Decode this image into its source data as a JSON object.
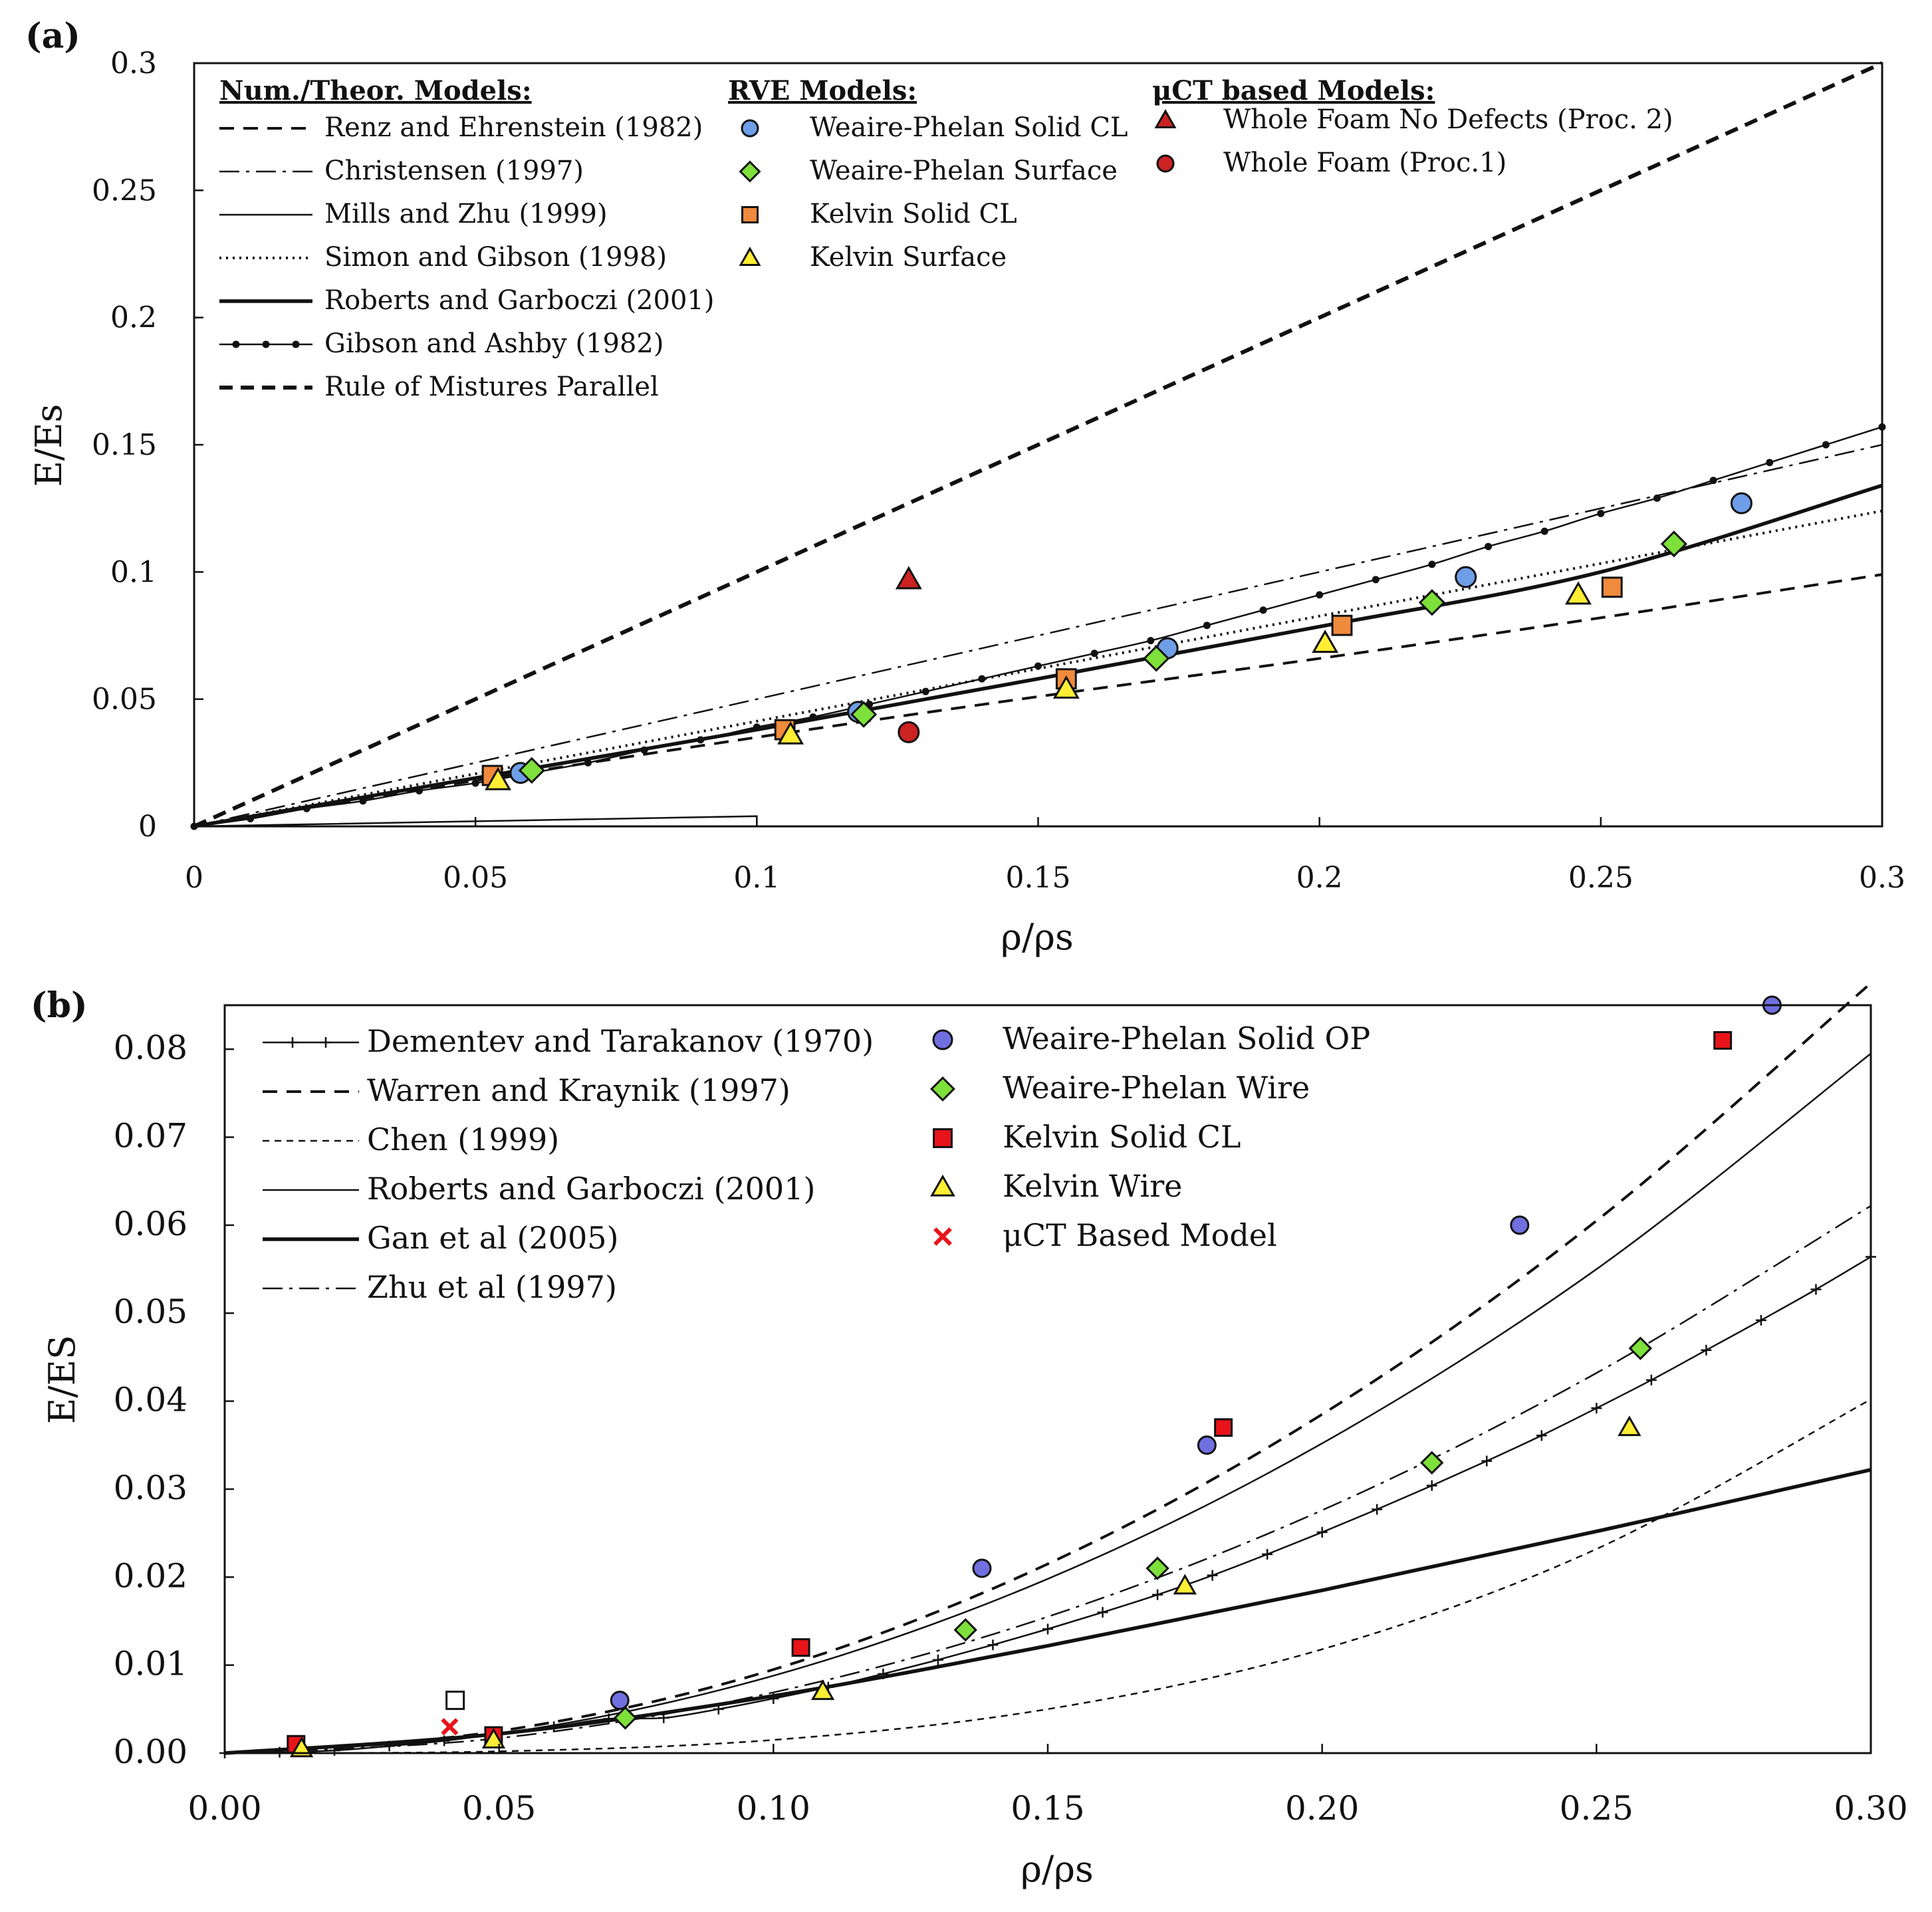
{
  "chart_data": [
    {
      "panel": "(a)",
      "type": "line",
      "xlabel": "ρ/ρs",
      "ylabel": "E/Es",
      "xlim": [
        0,
        0.3
      ],
      "ylim": [
        0,
        0.3
      ],
      "xticks": [
        "0",
        "0.05",
        "0.1",
        "0.15",
        "0.2",
        "0.25",
        "0.3"
      ],
      "yticks": [
        "0",
        "0.05",
        "0.1",
        "0.15",
        "0.2",
        "0.25",
        "0.3"
      ],
      "grid": false,
      "legend_heads": [
        "Num./Theor. Models:",
        "RVE Models:",
        "μCT based Models:"
      ],
      "lines": [
        {
          "name": "Renz and Ehrenstein (1982)",
          "style": "dashed",
          "x": [
            0,
            0.05,
            0.1,
            0.15,
            0.2,
            0.25,
            0.3
          ],
          "y": [
            0,
            0.018,
            0.035,
            0.051,
            0.066,
            0.082,
            0.099
          ]
        },
        {
          "name": "Christensen (1997)",
          "style": "dashdot",
          "x": [
            0,
            0.3
          ],
          "y": [
            0,
            0.15
          ]
        },
        {
          "name": "Mills and Zhu (1999)",
          "style": "thin",
          "x": [
            0,
            0.1,
            0.1
          ],
          "y": [
            0,
            0.004,
            0
          ]
        },
        {
          "name": "Simon and Gibson (1998)",
          "style": "dotted",
          "x": [
            0,
            0.3
          ],
          "y": [
            0,
            0.124
          ]
        },
        {
          "name": "Roberts and Garboczi (2001)",
          "style": "thick",
          "x": [
            0,
            0.05,
            0.1,
            0.15,
            0.2,
            0.25,
            0.3
          ],
          "y": [
            0,
            0.019,
            0.038,
            0.058,
            0.0785,
            0.1,
            0.134
          ]
        },
        {
          "name": "Gibson and Ashby (1982)",
          "style": "markers",
          "x": [
            0,
            0.01,
            0.02,
            0.03,
            0.04,
            0.05,
            0.06,
            0.07,
            0.08,
            0.09,
            0.1,
            0.11,
            0.12,
            0.13,
            0.14,
            0.15,
            0.16,
            0.17,
            0.18,
            0.19,
            0.2,
            0.21,
            0.22,
            0.23,
            0.24,
            0.25,
            0.26,
            0.27,
            0.28,
            0.29,
            0.3
          ],
          "y": [
            0,
            0.003,
            0.007,
            0.01,
            0.014,
            0.017,
            0.021,
            0.025,
            0.03,
            0.034,
            0.039,
            0.043,
            0.048,
            0.053,
            0.058,
            0.063,
            0.068,
            0.073,
            0.079,
            0.085,
            0.091,
            0.097,
            0.103,
            0.11,
            0.116,
            0.123,
            0.129,
            0.136,
            0.143,
            0.15,
            0.157
          ]
        },
        {
          "name": "Rule of Mistures Parallel",
          "style": "thickdashed",
          "x": [
            0,
            0.3
          ],
          "y": [
            0,
            0.3
          ]
        }
      ],
      "points": [
        {
          "name": "Weaire-Phelan Solid CL",
          "marker": "circle",
          "color": "#6f9ee8",
          "x": [
            0.058,
            0.118,
            0.173,
            0.226,
            0.275
          ],
          "y": [
            0.021,
            0.045,
            0.07,
            0.098,
            0.127
          ]
        },
        {
          "name": "Weaire-Phelan Surface",
          "marker": "diamond",
          "color": "#7ee03a",
          "x": [
            0.06,
            0.119,
            0.171,
            0.22,
            0.263
          ],
          "y": [
            0.022,
            0.044,
            0.066,
            0.088,
            0.111
          ]
        },
        {
          "name": "Kelvin Solid CL",
          "marker": "square",
          "color": "#f08a3c",
          "x": [
            0.053,
            0.105,
            0.155,
            0.204,
            0.252
          ],
          "y": [
            0.02,
            0.038,
            0.058,
            0.079,
            0.094
          ]
        },
        {
          "name": "Kelvin Surface",
          "marker": "triangle",
          "color": "#ffee33",
          "x": [
            0.054,
            0.106,
            0.155,
            0.201,
            0.246
          ],
          "y": [
            0.018,
            0.036,
            0.054,
            0.072,
            0.091
          ]
        },
        {
          "name": "Whole Foam No Defects (Proc. 2)",
          "marker": "triangle",
          "color": "#cc2222",
          "x": [
            0.127
          ],
          "y": [
            0.097
          ]
        },
        {
          "name": "Whole Foam (Proc.1)",
          "marker": "circle",
          "color": "#cc2222",
          "x": [
            0.127
          ],
          "y": [
            0.037
          ]
        }
      ]
    },
    {
      "panel": "(b)",
      "type": "line",
      "xlabel": "ρ/ρs",
      "ylabel": "E/ES",
      "xlim": [
        0,
        0.3
      ],
      "ylim": [
        0,
        0.085
      ],
      "xticks": [
        "0.00",
        "0.05",
        "0.10",
        "0.15",
        "0.20",
        "0.25",
        "0.30"
      ],
      "yticks": [
        "0.00",
        "0.01",
        "0.02",
        "0.03",
        "0.04",
        "0.05",
        "0.06",
        "0.07",
        "0.08"
      ],
      "grid": false,
      "lines": [
        {
          "name": "Dementev and Tarakanov (1970)",
          "style": "plus",
          "x": [
            0,
            0.01,
            0.02,
            0.03,
            0.04,
            0.05,
            0.06,
            0.07,
            0.08,
            0.09,
            0.1,
            0.11,
            0.12,
            0.13,
            0.14,
            0.15,
            0.16,
            0.17,
            0.18,
            0.19,
            0.2,
            0.21,
            0.22,
            0.23,
            0.24,
            0.25,
            0.26,
            0.27,
            0.28,
            0.29,
            0.3
          ],
          "y": [
            0,
            0.0001,
            0.0003,
            0.0008,
            0.0014,
            0.0022,
            0.003,
            0.0039,
            0.004,
            0.005,
            0.0062,
            0.0075,
            0.009,
            0.0106,
            0.0123,
            0.0141,
            0.016,
            0.018,
            0.0202,
            0.0226,
            0.0251,
            0.0277,
            0.0304,
            0.0332,
            0.0361,
            0.0392,
            0.0424,
            0.0458,
            0.0492,
            0.0527,
            0.0564
          ]
        },
        {
          "name": "Warren and Kraynik (1997)",
          "style": "dashed",
          "x": [
            0,
            0.05,
            0.1,
            0.15,
            0.2,
            0.25,
            0.3
          ],
          "y": [
            0,
            0.0025,
            0.0095,
            0.0215,
            0.0385,
            0.0605,
            0.0875
          ]
        },
        {
          "name": "Chen (1999)",
          "style": "shortdash",
          "x": [
            0,
            0.05,
            0.1,
            0.15,
            0.2,
            0.25,
            0.3
          ],
          "y": [
            0,
            0.0002,
            0.0015,
            0.005,
            0.0118,
            0.0232,
            0.0402
          ]
        },
        {
          "name": "Roberts and Garboczi (2001)",
          "style": "thin",
          "x": [
            0,
            0.05,
            0.1,
            0.15,
            0.2,
            0.25,
            0.3
          ],
          "y": [
            0,
            0.0022,
            0.0088,
            0.0198,
            0.0352,
            0.055,
            0.0795
          ]
        },
        {
          "name": "Gan et al (2005)",
          "style": "thick",
          "x": [
            0,
            0.05,
            0.1,
            0.15,
            0.2,
            0.25,
            0.3
          ],
          "y": [
            0,
            0.0022,
            0.0065,
            0.0122,
            0.0185,
            0.0252,
            0.0322
          ]
        },
        {
          "name": "Zhu et al (1997)",
          "style": "dashdot",
          "x": [
            0,
            0.05,
            0.1,
            0.15,
            0.2,
            0.25,
            0.3
          ],
          "y": [
            0,
            0.0017,
            0.0069,
            0.0155,
            0.0276,
            0.0432,
            0.0622
          ]
        }
      ],
      "points": [
        {
          "name": "Weaire-Phelan Solid OP",
          "marker": "circle",
          "color": "#6f6fe0",
          "x": [
            0.072,
            0.138,
            0.179,
            0.236,
            0.282
          ],
          "y": [
            0.006,
            0.021,
            0.035,
            0.06,
            0.085
          ]
        },
        {
          "name": "Weaire-Phelan Wire",
          "marker": "diamond",
          "color": "#7ee03a",
          "x": [
            0.073,
            0.135,
            0.17,
            0.22,
            0.258
          ],
          "y": [
            0.004,
            0.014,
            0.021,
            0.033,
            0.046
          ]
        },
        {
          "name": "Kelvin Solid CL",
          "marker": "square",
          "color": "#e8141a",
          "x": [
            0.013,
            0.049,
            0.105,
            0.182,
            0.273
          ],
          "y": [
            0.001,
            0.002,
            0.012,
            0.037,
            0.081
          ]
        },
        {
          "name": "Kelvin Wire",
          "marker": "triangle",
          "color": "#ffee33",
          "x": [
            0.014,
            0.049,
            0.109,
            0.175,
            0.256
          ],
          "y": [
            0.0005,
            0.0015,
            0.007,
            0.019,
            0.037
          ]
        },
        {
          "name": "μCT Based Model",
          "marker": "cross",
          "color": "#e8141a",
          "x": [
            0.041
          ],
          "y": [
            0.003
          ]
        },
        {
          "name": "",
          "marker": "opensquare",
          "color": "#111111",
          "x": [
            0.042
          ],
          "y": [
            0.006
          ]
        }
      ]
    }
  ]
}
